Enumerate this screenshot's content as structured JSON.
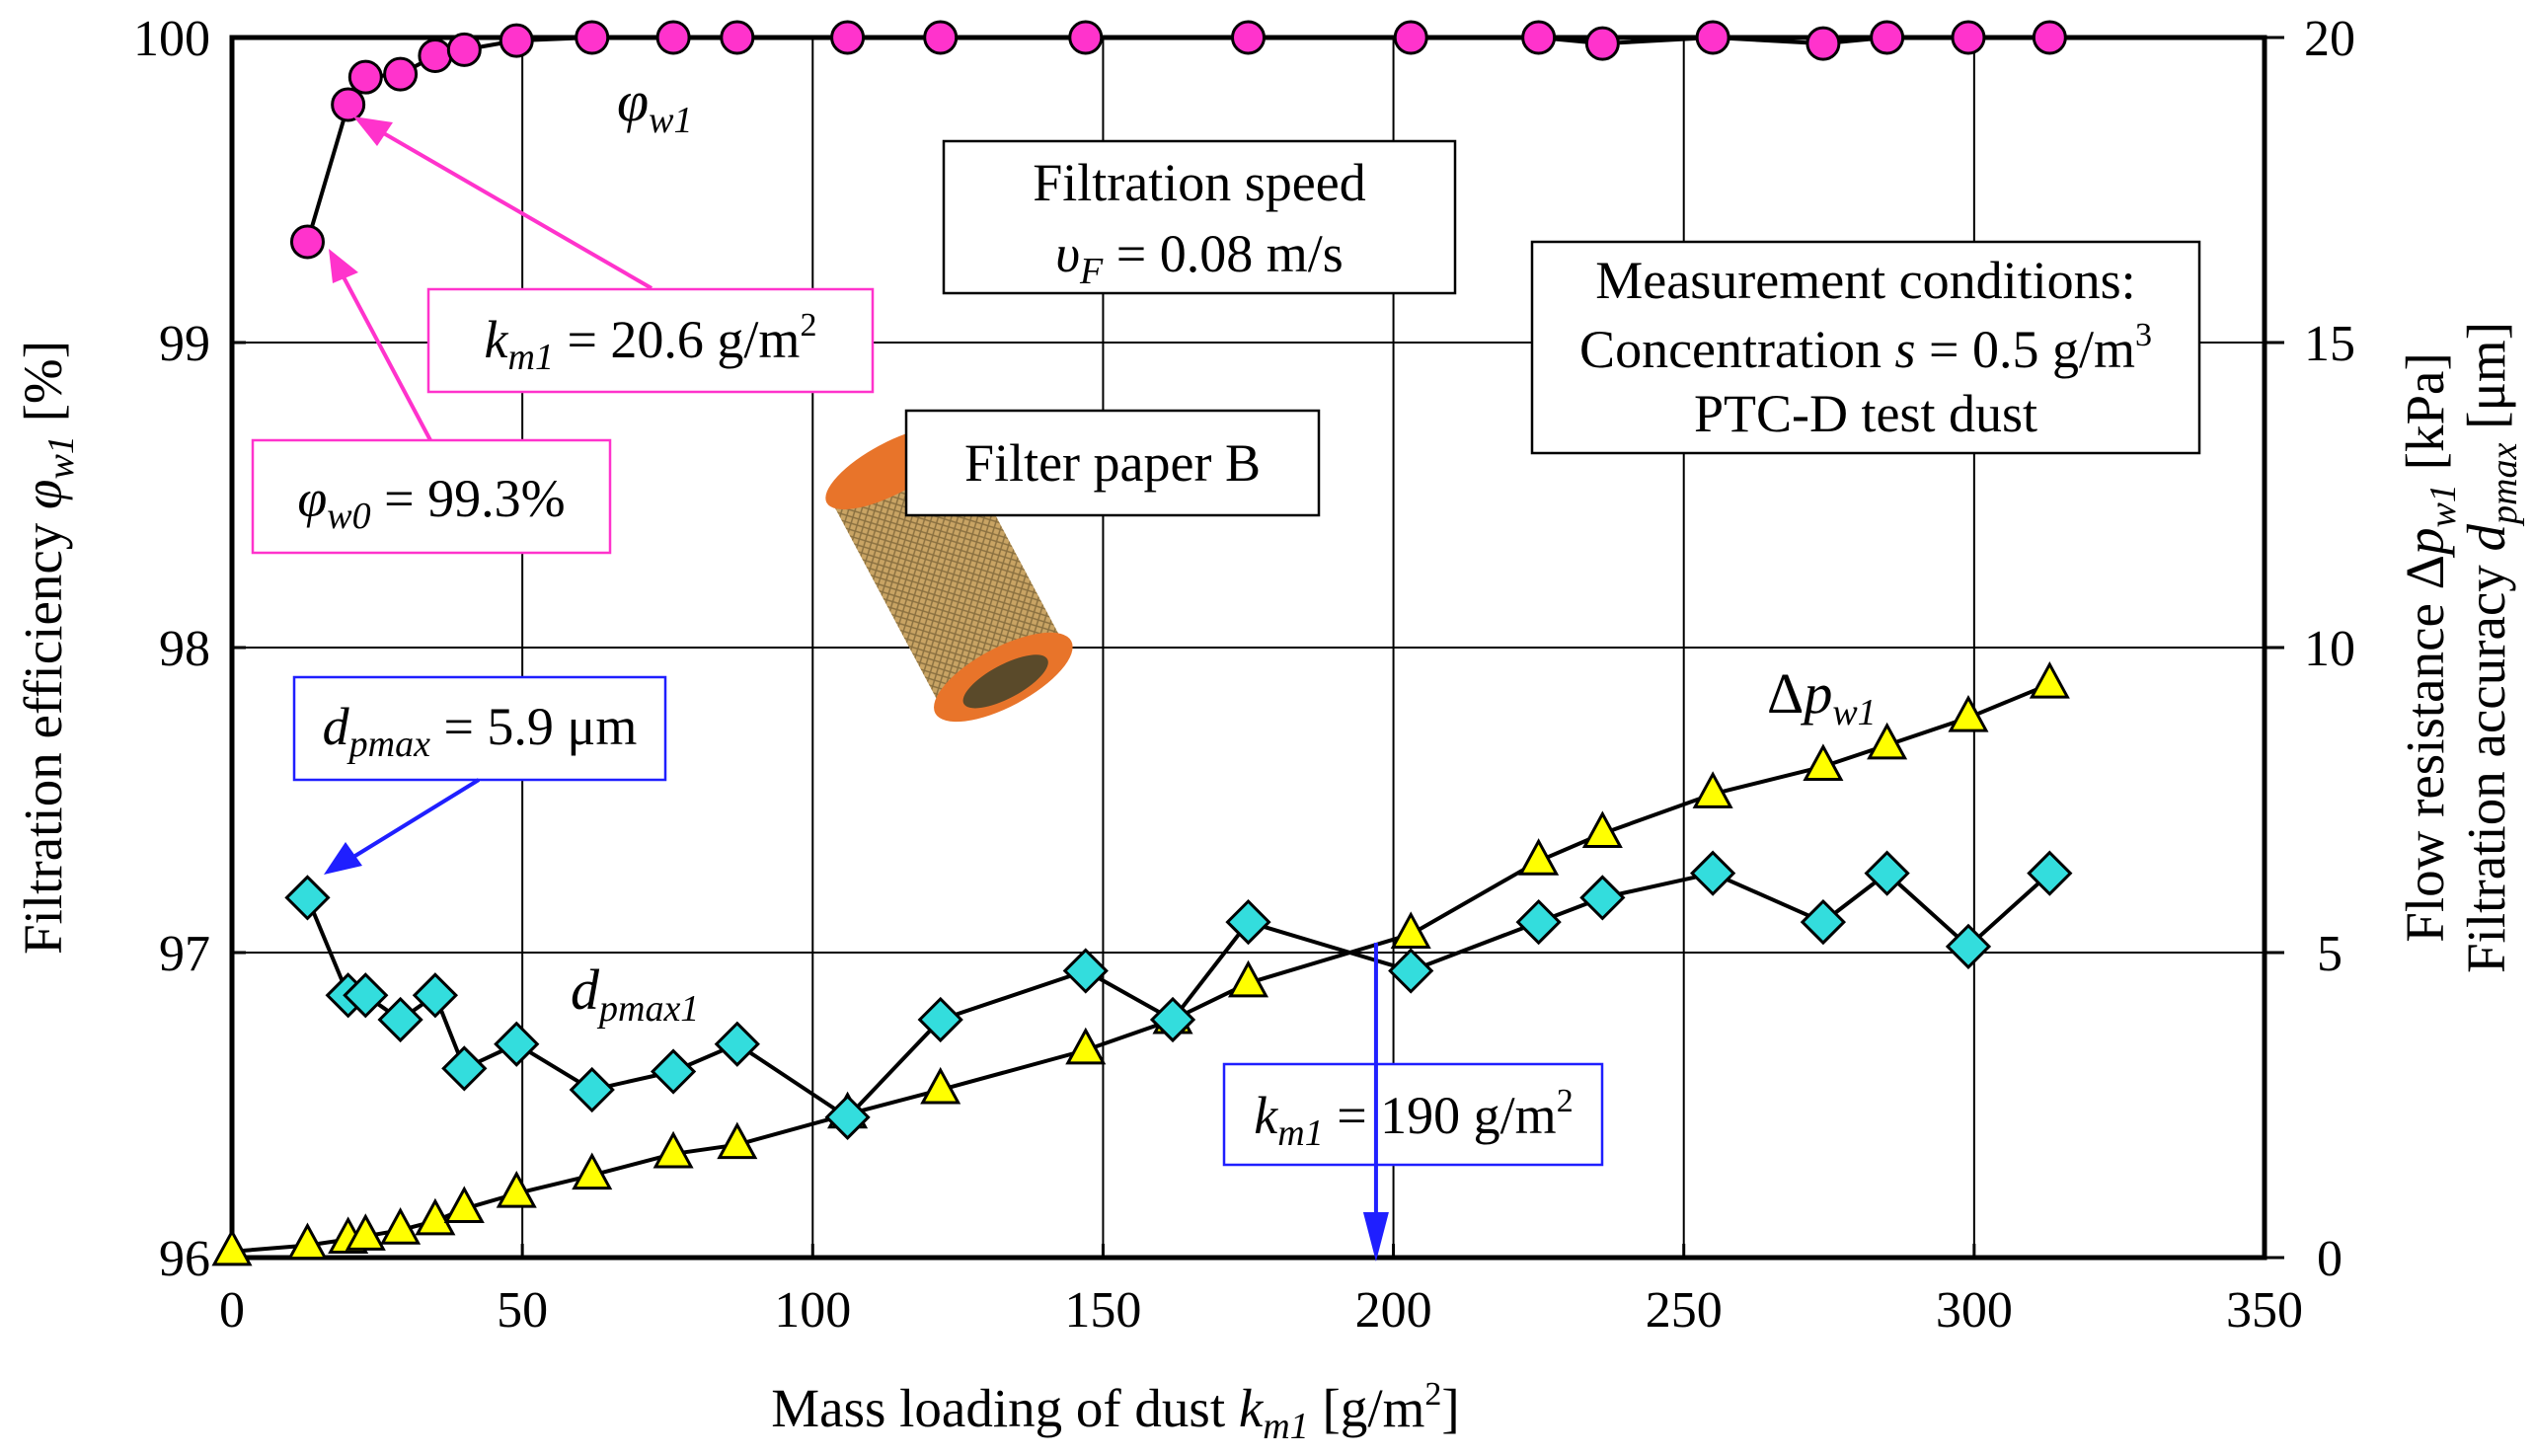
{
  "chart_data": {
    "type": "line",
    "xlabel": "Mass loading of dust",
    "xlabel_symbol": "k",
    "xlabel_symbol_sub": "m1",
    "xlabel_unit_pre": " [g/m",
    "xlabel_unit_sup": "2",
    "xlabel_unit_post": "]",
    "ylabel_left": "Filtration efficiency",
    "ylabel_left_symbol": "φ",
    "ylabel_left_symbol_sub": "w1",
    "ylabel_left_unit": " [%]",
    "ylabel_right_1_pre": "Flow resistance Δ",
    "ylabel_right_1_symbol": "p",
    "ylabel_right_1_sub": "w1",
    "ylabel_right_1_unit": " [kPa]",
    "ylabel_right_2_pre": "Filtration accuracy ",
    "ylabel_right_2_symbol": "d",
    "ylabel_right_2_sub": "pmax",
    "ylabel_right_2_unit": " [μm]",
    "xlim": [
      0,
      350
    ],
    "xticks": [
      "0",
      "50",
      "100",
      "150",
      "200",
      "250",
      "300",
      "350"
    ],
    "ylim_left": [
      96,
      100
    ],
    "yticks_left": [
      "96",
      "97",
      "98",
      "99",
      "100"
    ],
    "ylim_right": [
      0,
      20
    ],
    "yticks_right": [
      "0",
      "5",
      "10",
      "15",
      "20"
    ],
    "grid": true,
    "series": [
      {
        "name": "φw1",
        "label_symbol": "φ",
        "label_sub": "w1",
        "axis": "left",
        "marker": "circle",
        "color": "#ff33cc",
        "x": [
          13,
          20,
          23,
          29,
          35,
          40,
          49,
          62,
          76,
          87,
          106,
          122,
          147,
          175,
          203,
          225,
          236,
          255,
          274,
          285,
          299,
          313
        ],
        "y": [
          99.33,
          99.78,
          99.87,
          99.88,
          99.94,
          99.96,
          99.99,
          100.0,
          100.0,
          100.0,
          100.0,
          100.0,
          100.0,
          100.0,
          100.0,
          100.0,
          99.98,
          100.0,
          99.98,
          100.0,
          100.0,
          100.0
        ]
      },
      {
        "name": "Δpw1",
        "label_prefix": "Δ",
        "label_symbol": "p",
        "label_sub": "w1",
        "axis": "right",
        "marker": "triangle",
        "color": "#ffff00",
        "x": [
          0,
          13,
          20,
          23,
          29,
          35,
          40,
          49,
          62,
          76,
          87,
          106,
          122,
          147,
          162,
          175,
          203,
          225,
          236,
          255,
          274,
          285,
          299,
          313
        ],
        "y": [
          0.1,
          0.2,
          0.3,
          0.35,
          0.45,
          0.6,
          0.8,
          1.05,
          1.35,
          1.7,
          1.85,
          2.35,
          2.75,
          3.4,
          3.9,
          4.5,
          5.3,
          6.5,
          6.95,
          7.6,
          8.05,
          8.4,
          8.85,
          9.4
        ]
      },
      {
        "name": "dpmax1",
        "label_symbol": "d",
        "label_sub": "pmax1",
        "axis": "right",
        "marker": "diamond",
        "color": "#33dddd",
        "x": [
          13,
          20,
          23,
          29,
          35,
          40,
          49,
          62,
          76,
          87,
          106,
          122,
          147,
          162,
          175,
          203,
          225,
          236,
          255,
          274,
          285,
          299,
          313
        ],
        "y": [
          5.9,
          4.3,
          4.3,
          3.9,
          4.3,
          3.1,
          3.5,
          2.75,
          3.05,
          3.5,
          2.3,
          3.9,
          4.7,
          3.9,
          5.5,
          4.7,
          5.5,
          5.9,
          6.3,
          5.5,
          6.3,
          5.1,
          6.3
        ]
      }
    ],
    "annotations": {
      "filtration_speed_title": "Filtration speed",
      "filtration_speed_symbol": "υ",
      "filtration_speed_sub": "F",
      "filtration_speed_value": " = 0.08 m/s",
      "measurement_line1": "Measurement conditions:",
      "measurement_line2_pre": "Concentration ",
      "measurement_line2_symbol": "s",
      "measurement_line2_post": " = 0.5 g/m",
      "measurement_line2_sup": "3",
      "measurement_line3": "PTC-D test dust",
      "filter_paper": "Filter paper B",
      "km1_pink_symbol": "k",
      "km1_pink_sub": "m1",
      "km1_pink_value": " = 20.6 g/m",
      "km1_pink_sup": "2",
      "phi_w0_symbol": "φ",
      "phi_w0_sub": "w0",
      "phi_w0_value": " = 99.3%",
      "dpmax_symbol": "d",
      "dpmax_sub": "pmax",
      "dpmax_value": " = 5.9 μm",
      "km1_blue_symbol": "k",
      "km1_blue_sub": "m1",
      "km1_blue_value": " = 190 g/m",
      "km1_blue_sup": "2",
      "km1_blue_x": 197
    },
    "colors": {
      "pink": "#ff33cc",
      "blue": "#1f1fff",
      "yellow_marker": "#ffff00",
      "cyan_marker": "#33dddd"
    }
  }
}
